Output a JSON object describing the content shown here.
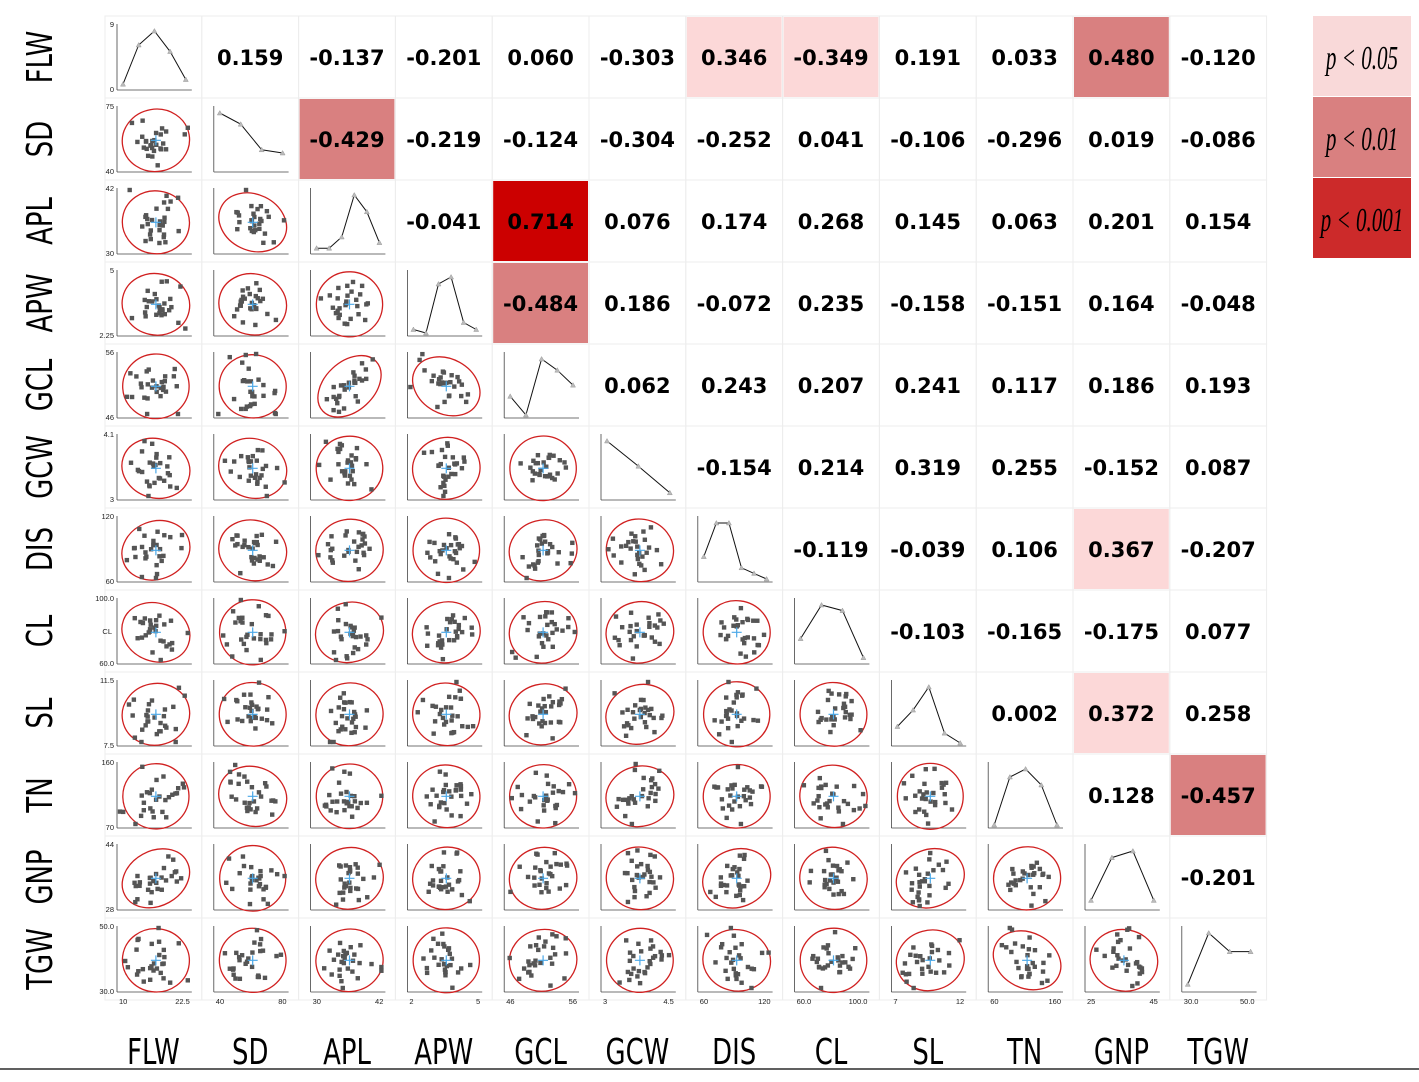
{
  "chart_data": {
    "type": "scatter",
    "subtype": "correlation-matrix",
    "variables": [
      "FLW",
      "SD",
      "APL",
      "APW",
      "GCL",
      "GCW",
      "DIS",
      "CL",
      "SL",
      "TN",
      "GNP",
      "TGW"
    ],
    "correlations": [
      [
        null,
        0.159,
        -0.137,
        -0.201,
        0.06,
        -0.303,
        0.346,
        -0.349,
        0.191,
        0.033,
        0.48,
        -0.12
      ],
      [
        null,
        null,
        -0.429,
        -0.219,
        -0.124,
        -0.304,
        -0.252,
        0.041,
        -0.106,
        -0.296,
        0.019,
        -0.086
      ],
      [
        null,
        null,
        null,
        -0.041,
        0.714,
        0.076,
        0.174,
        0.268,
        0.145,
        0.063,
        0.201,
        0.154
      ],
      [
        null,
        null,
        null,
        null,
        -0.484,
        0.186,
        -0.072,
        0.235,
        -0.158,
        -0.151,
        0.164,
        -0.048
      ],
      [
        null,
        null,
        null,
        null,
        null,
        0.062,
        0.243,
        0.207,
        0.241,
        0.117,
        0.186,
        0.193
      ],
      [
        null,
        null,
        null,
        null,
        null,
        null,
        -0.154,
        0.214,
        0.319,
        0.255,
        -0.152,
        0.087
      ],
      [
        null,
        null,
        null,
        null,
        null,
        null,
        null,
        -0.119,
        -0.039,
        0.106,
        0.367,
        -0.207
      ],
      [
        null,
        null,
        null,
        null,
        null,
        null,
        null,
        null,
        -0.103,
        -0.165,
        -0.175,
        0.077
      ],
      [
        null,
        null,
        null,
        null,
        null,
        null,
        null,
        null,
        null,
        0.002,
        0.372,
        0.258
      ],
      [
        null,
        null,
        null,
        null,
        null,
        null,
        null,
        null,
        null,
        null,
        0.128,
        -0.457
      ],
      [
        null,
        null,
        null,
        null,
        null,
        null,
        null,
        null,
        null,
        null,
        null,
        -0.201
      ],
      [
        null,
        null,
        null,
        null,
        null,
        null,
        null,
        null,
        null,
        null,
        null,
        null
      ]
    ],
    "display_strings": [
      [
        "",
        "0.159",
        "-0.137",
        "-0.201",
        "0.060",
        "-0.303",
        "0.346",
        "-0.349",
        "0.191",
        "0.033",
        "0.480",
        "-0.120"
      ],
      [
        "",
        "",
        "-0.429",
        "-0.219",
        "-0.124",
        "-0.304",
        "-0.252",
        "0.041",
        "-0.106",
        "-0.296",
        "0.019",
        "-0.086"
      ],
      [
        "",
        "",
        "",
        "-0.041",
        "0.714",
        "0.076",
        "0.174",
        "0.268",
        "0.145",
        "0.063",
        "0.201",
        "0.154"
      ],
      [
        "",
        "",
        "",
        "",
        "-0.484",
        "0.186",
        "-0.072",
        "0.235",
        "-0.158",
        "-0.151",
        "0.164",
        "-0.048"
      ],
      [
        "",
        "",
        "",
        "",
        "",
        "0.062",
        "0.243",
        "0.207",
        "0.241",
        "0.117",
        "0.186",
        "0.193"
      ],
      [
        "",
        "",
        "",
        "",
        "",
        "",
        "-0.154",
        "0.214",
        "0.319",
        "0.255",
        "-0.152",
        "0.087"
      ],
      [
        "",
        "",
        "",
        "",
        "",
        "",
        "",
        "-0.119",
        "-0.039",
        "0.106",
        "0.367",
        "-0.207"
      ],
      [
        "",
        "",
        "",
        "",
        "",
        "",
        "",
        "",
        "-0.103",
        "-0.165",
        "-0.175",
        "0.077"
      ],
      [
        "",
        "",
        "",
        "",
        "",
        "",
        "",
        "",
        "",
        "0.002",
        "0.372",
        "0.258"
      ],
      [
        "",
        "",
        "",
        "",
        "",
        "",
        "",
        "",
        "",
        "",
        "0.128",
        "-0.457"
      ],
      [
        "",
        "",
        "",
        "",
        "",
        "",
        "",
        "",
        "",
        "",
        "",
        "-0.201"
      ],
      [
        "",
        "",
        "",
        "",
        "",
        "",
        "",
        "",
        "",
        "",
        "",
        ""
      ]
    ],
    "significance": [
      [
        0,
        0,
        0,
        0,
        0,
        0,
        1,
        1,
        0,
        0,
        2,
        0
      ],
      [
        0,
        0,
        2,
        0,
        0,
        0,
        0,
        0,
        0,
        0,
        0,
        0
      ],
      [
        0,
        0,
        0,
        0,
        3,
        0,
        0,
        0,
        0,
        0,
        0,
        0
      ],
      [
        0,
        0,
        0,
        0,
        2,
        0,
        0,
        0,
        0,
        0,
        0,
        0
      ],
      [
        0,
        0,
        0,
        0,
        0,
        0,
        0,
        0,
        0,
        0,
        0,
        0
      ],
      [
        0,
        0,
        0,
        0,
        0,
        0,
        0,
        0,
        0,
        0,
        0,
        0
      ],
      [
        0,
        0,
        0,
        0,
        0,
        0,
        0,
        0,
        0,
        0,
        1,
        0
      ],
      [
        0,
        0,
        0,
        0,
        0,
        0,
        0,
        0,
        0,
        0,
        0,
        0
      ],
      [
        0,
        0,
        0,
        0,
        0,
        0,
        0,
        0,
        0,
        0,
        1,
        0
      ],
      [
        0,
        0,
        0,
        0,
        0,
        0,
        0,
        0,
        0,
        0,
        0,
        2
      ],
      [
        0,
        0,
        0,
        0,
        0,
        0,
        0,
        0,
        0,
        0,
        0,
        0
      ],
      [
        0,
        0,
        0,
        0,
        0,
        0,
        0,
        0,
        0,
        0,
        0,
        0
      ]
    ],
    "legend": [
      {
        "label": "p < 0.05",
        "color": "#f9d9d9"
      },
      {
        "label": "p < 0.01",
        "color": "#d98080"
      },
      {
        "label": "p < 0.001",
        "color": "#cc2a2a"
      }
    ],
    "heatmap_colors": {
      "1": "#fcd8d8",
      "2": "#d98080",
      "3": "#cc0000"
    },
    "diagonal_histograms": [
      [
        0.3,
        4.5,
        6.0,
        3.8,
        0.8
      ],
      [
        75,
        68,
        52,
        50
      ],
      [
        1,
        1,
        5,
        20,
        14,
        3
      ],
      [
        0.5,
        0,
        7,
        8,
        1.5,
        0.5
      ],
      [
        0.5,
        0,
        1.5,
        1.2,
        0.8
      ],
      [
        4,
        2.2,
        0.3
      ],
      [
        0.4,
        1.0,
        1.0,
        0.2,
        0.1,
        0
      ],
      [
        2,
        5,
        4.5,
        0.3
      ],
      [
        0.5,
        1,
        1.7,
        0.3,
        0
      ],
      [
        0,
        0.6,
        0.7,
        0.5,
        0
      ],
      [
        0.2,
        1.5,
        1.7,
        0.2
      ],
      [
        0.1,
        1.2,
        0.8,
        0.8
      ]
    ],
    "row_axis_ranges": [
      [
        "0",
        "9"
      ],
      [
        "40",
        "75"
      ],
      [
        "30",
        "42"
      ],
      [
        "2.25",
        "5"
      ],
      [
        "46",
        "56"
      ],
      [
        "3",
        "4.1"
      ],
      [
        "60",
        "120"
      ],
      [
        "60.0",
        "100.0"
      ],
      [
        "7.5",
        "11.5"
      ],
      [
        "70",
        "160"
      ],
      [
        "28",
        "44"
      ],
      [
        "30.0",
        "50.0"
      ]
    ],
    "col_axis_ranges": [
      [
        "10",
        "22.5"
      ],
      [
        "40",
        "80"
      ],
      [
        "30",
        "42"
      ],
      [
        "2",
        "5"
      ],
      [
        "46",
        "56"
      ],
      [
        "3",
        "4.5"
      ],
      [
        "60",
        "120"
      ],
      [
        "60.0",
        "100.0"
      ],
      [
        "7",
        "12"
      ],
      [
        "60",
        "160"
      ],
      [
        "25",
        "45"
      ],
      [
        "30.0",
        "50.0"
      ]
    ],
    "cl_row_small_label": "CL",
    "ellipse_color": "#d02020",
    "point_color": "#555555",
    "center_marker_color": "#4aa8e8"
  }
}
